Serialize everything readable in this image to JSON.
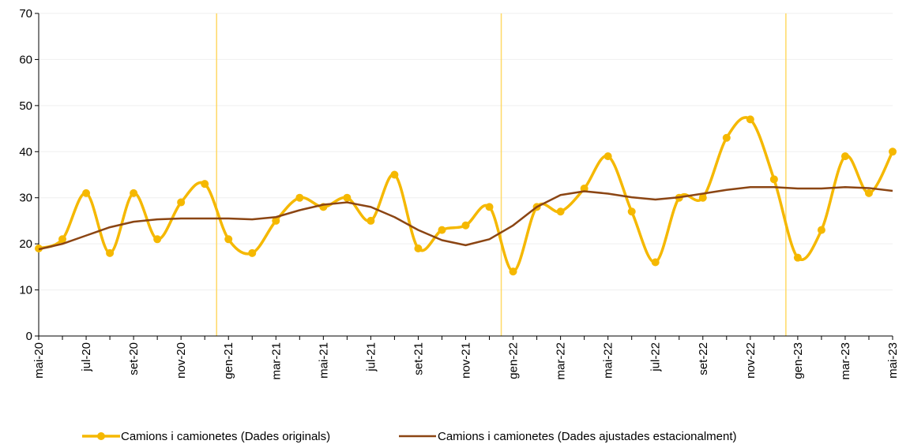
{
  "chart_data": {
    "type": "line",
    "x": [
      "mai-20",
      "jun-20",
      "jul-20",
      "ago-20",
      "set-20",
      "oct-20",
      "nov-20",
      "des-20",
      "gen-21",
      "feb-21",
      "mar-21",
      "abr-21",
      "mai-21",
      "jun-21",
      "jul-21",
      "ago-21",
      "set-21",
      "oct-21",
      "nov-21",
      "des-21",
      "gen-22",
      "feb-22",
      "mar-22",
      "abr-22",
      "mai-22",
      "jun-22",
      "jul-22",
      "ago-22",
      "set-22",
      "oct-22",
      "nov-22",
      "des-22",
      "gen-23",
      "feb-23",
      "mar-23",
      "abr-23",
      "mai-23"
    ],
    "x_tick_labels": [
      "mai-20",
      "jul-20",
      "set-20",
      "nov-20",
      "gen-21",
      "mar-21",
      "mai-21",
      "jul-21",
      "set-21",
      "nov-21",
      "gen-22",
      "mar-22",
      "mai-22",
      "jul-22",
      "set-22",
      "nov-22",
      "gen-23",
      "mar-23",
      "mai-23"
    ],
    "y_ticks": [
      "0",
      "10",
      "20",
      "30",
      "40",
      "50",
      "60",
      "70"
    ],
    "ylim": [
      0,
      70
    ],
    "series": [
      {
        "name": "Camions i camionetes (Dades originals)",
        "color": "#F5B800",
        "marker": "circle",
        "smooth": true,
        "values": [
          19,
          21,
          31,
          18,
          31,
          21,
          29,
          33,
          21,
          18,
          25,
          30,
          28,
          30,
          25,
          35,
          19,
          23,
          24,
          28,
          14,
          28,
          27,
          32,
          39,
          27,
          16,
          30,
          30,
          43,
          47,
          34,
          17,
          23,
          39,
          31,
          40
        ]
      },
      {
        "name": "Camions i camionetes (Dades ajustades estacionalment)",
        "color": "#8B4513",
        "marker": "none",
        "smooth": false,
        "values": [
          18.8,
          20,
          21.8,
          23.6,
          24.8,
          25.3,
          25.5,
          25.5,
          25.5,
          25.3,
          25.8,
          27.3,
          28.5,
          29,
          28,
          25.8,
          23,
          20.8,
          19.7,
          21,
          24,
          28,
          30.6,
          31.4,
          30.9,
          30.1,
          29.6,
          30.1,
          30.9,
          31.7,
          32.3,
          32.3,
          32,
          32,
          32.3,
          32.1,
          31.5
        ]
      }
    ],
    "year_separators_after": [
      "nov-20",
      "nov-21",
      "nov-22"
    ],
    "separator_color": "#FFD966",
    "grid": true,
    "grid_color": "#EFEFEF",
    "legend_position": "bottom"
  }
}
